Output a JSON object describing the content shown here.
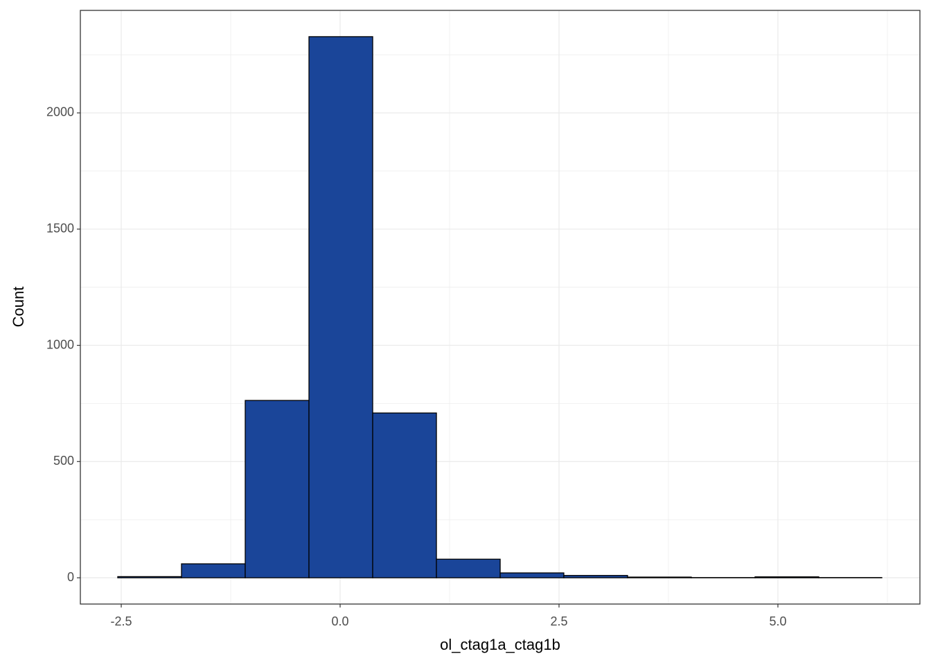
{
  "chart_data": {
    "type": "histogram",
    "x_label": "ol_ctag1a_ctag1b",
    "y_label": "Count",
    "bins": [
      -2.54,
      -1.812,
      -1.084,
      -0.356,
      0.372,
      1.1,
      1.828,
      2.555,
      3.283,
      4.011,
      4.739,
      5.467,
      6.187
    ],
    "values": [
      5,
      60,
      763,
      2328,
      709,
      80,
      21,
      10,
      3,
      1,
      4,
      1
    ],
    "color": "#1a4599",
    "edge_color": "#000000",
    "xlim": [
      -2.967,
      6.622
    ],
    "ylim": [
      -113,
      2441
    ],
    "xticks": [
      -2.5,
      {
        "value": 0,
        "label": "0.0"
      },
      2.5,
      {
        "value": 5,
        "label": "5.0"
      }
    ],
    "yticks": [
      0,
      500,
      1000,
      1500,
      2000
    ],
    "grid": true
  }
}
